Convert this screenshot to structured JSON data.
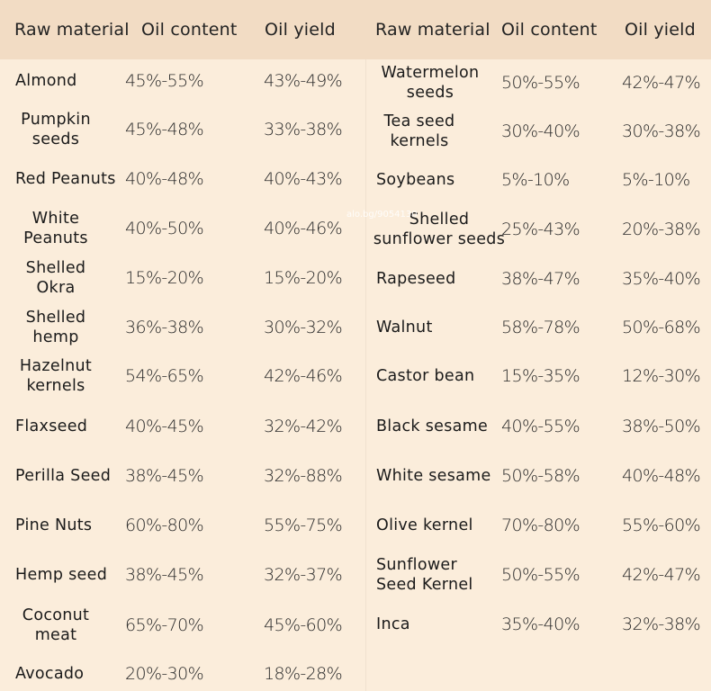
{
  "headers": [
    "Raw material",
    "Oil content",
    "Oil yield",
    "Raw material",
    "Oil content",
    "Oil yield"
  ],
  "left_rows": [
    {
      "name": "Almond",
      "oil_content": "45%-55%",
      "oil_yield": "43%-49%"
    },
    {
      "name": "Pumpkin seeds",
      "oil_content": "45%-48%",
      "oil_yield": "33%-38%"
    },
    {
      "name": "Red Peanuts",
      "oil_content": "40%-48%",
      "oil_yield": "40%-43%"
    },
    {
      "name": "White Peanuts",
      "oil_content": "40%-50%",
      "oil_yield": "40%-46%"
    },
    {
      "name": "Shelled Okra",
      "oil_content": "15%-20%",
      "oil_yield": "15%-20%"
    },
    {
      "name": "Shelled hemp",
      "oil_content": "36%-38%",
      "oil_yield": "30%-32%"
    },
    {
      "name": "Hazelnut kernels",
      "oil_content": "54%-65%",
      "oil_yield": "42%-46%"
    },
    {
      "name": "Flaxseed",
      "oil_content": "40%-45%",
      "oil_yield": "32%-42%"
    },
    {
      "name": "Perilla Seed",
      "oil_content": "38%-45%",
      "oil_yield": "32%-88%"
    },
    {
      "name": "Pine Nuts",
      "oil_content": "60%-80%",
      "oil_yield": "55%-75%"
    },
    {
      "name": "Hemp seed",
      "oil_content": "38%-45%",
      "oil_yield": "32%-37%"
    },
    {
      "name": "Coconut meat",
      "oil_content": "65%-70%",
      "oil_yield": "45%-60%"
    },
    {
      "name": "Avocado",
      "oil_content": "20%-30%",
      "oil_yield": "18%-28%"
    }
  ],
  "right_rows": [
    {
      "name": "Watermelon seeds",
      "oil_content": "50%-55%",
      "oil_yield": "42%-47%"
    },
    {
      "name": "Tea seed kernels",
      "oil_content": "30%-40%",
      "oil_yield": "30%-38%"
    },
    {
      "name": "Soybeans",
      "oil_content": "5%-10%",
      "oil_yield": "5%-10%"
    },
    {
      "name": "Shelled sunflower seeds",
      "oil_content": "25%-43%",
      "oil_yield": "20%-38%"
    },
    {
      "name": "Rapeseed",
      "oil_content": "38%-47%",
      "oil_yield": "35%-40%"
    },
    {
      "name": "Walnut",
      "oil_content": "58%-78%",
      "oil_yield": "50%-68%"
    },
    {
      "name": "Castor bean",
      "oil_content": "15%-35%",
      "oil_yield": "12%-30%"
    },
    {
      "name": "Black sesame",
      "oil_content": "40%-55%",
      "oil_yield": "38%-50%"
    },
    {
      "name": "White sesame",
      "oil_content": "50%-58%",
      "oil_yield": "40%-48%"
    },
    {
      "name": "Olive kernel",
      "oil_content": "70%-80%",
      "oil_yield": "55%-60%"
    },
    {
      "name": "Sunflower Seed Kernel",
      "oil_content": "50%-55%",
      "oil_yield": "42%-47%"
    },
    {
      "name": "Inca",
      "oil_content": "35%-40%",
      "oil_yield": "32%-38%"
    }
  ],
  "watermark": "alo.bg/9054130",
  "colors": {
    "background": "#fbeddb",
    "header": "#f2dcc4",
    "text": "#1a1a1a"
  }
}
